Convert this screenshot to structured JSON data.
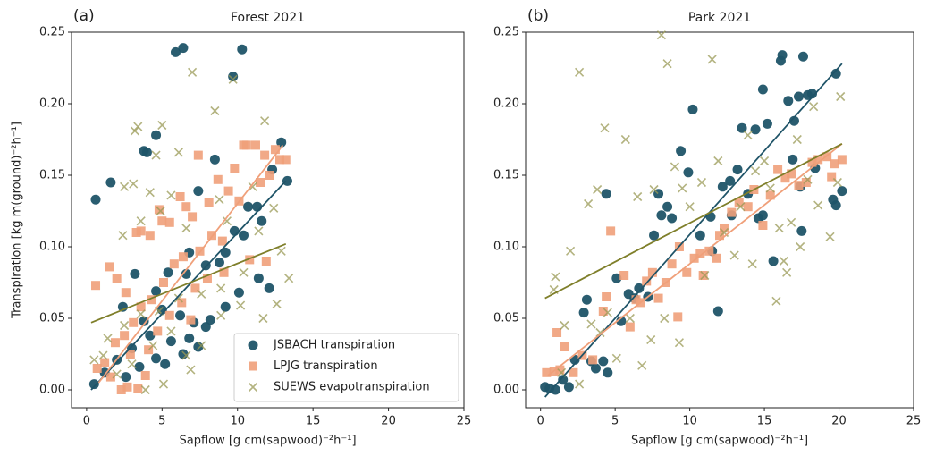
{
  "chart_data": [
    {
      "type": "scatter",
      "panel_label": "(a)",
      "title": "Forest 2021",
      "xlabel": "Sapflow [g cm(sapwood)⁻²h⁻¹]",
      "ylabel": "Transpiration [kg m(ground)⁻²h⁻¹]",
      "xlim": [
        -1,
        25
      ],
      "ylim": [
        -0.0125,
        0.25
      ],
      "xticks": [
        0,
        5,
        10,
        15,
        20,
        25
      ],
      "yticks": [
        {
          "value": 0,
          "label": "0.00"
        },
        {
          "value": 0.05,
          "label": "0.05"
        },
        {
          "value": 0.1,
          "label": "0.10"
        },
        {
          "value": 0.15,
          "label": "0.15"
        },
        {
          "value": 0.2,
          "label": "0.20"
        },
        {
          "value": 0.25,
          "label": "0.25"
        }
      ],
      "legend": "lower right",
      "series": [
        {
          "name": "JSBACH transpiration",
          "color": "#1f5468",
          "marker": "circle",
          "x": [
            0.6,
            1.6,
            4.6,
            3.8,
            4.0,
            5.9,
            6.4,
            10.3,
            9.7,
            7.4,
            8.5,
            12.9,
            13.3,
            12.3,
            11.3,
            10.7,
            11.6,
            9.8,
            10.4,
            8.8,
            9.2,
            7.9,
            6.6,
            6.8,
            5.4,
            4.6,
            3.2,
            2.4,
            3.8,
            5.0,
            6.2,
            7.1,
            8.2,
            9.2,
            10.1,
            11.4,
            12.1,
            4.2,
            5.6,
            6.8,
            7.9,
            3.0,
            2.0,
            1.2,
            0.5,
            4.6,
            5.2,
            6.4,
            3.5,
            2.6,
            7.4
          ],
          "values": [
            0.133,
            0.145,
            0.178,
            0.167,
            0.166,
            0.236,
            0.239,
            0.238,
            0.219,
            0.139,
            0.161,
            0.173,
            0.146,
            0.154,
            0.128,
            0.128,
            0.118,
            0.111,
            0.108,
            0.089,
            0.096,
            0.087,
            0.081,
            0.096,
            0.082,
            0.069,
            0.081,
            0.058,
            0.048,
            0.056,
            0.052,
            0.047,
            0.049,
            0.058,
            0.068,
            0.078,
            0.071,
            0.038,
            0.034,
            0.036,
            0.044,
            0.029,
            0.021,
            0.012,
            0.004,
            0.022,
            0.018,
            0.025,
            0.016,
            0.009,
            0.03
          ]
        },
        {
          "name": "LPJG transpiration",
          "color": "#f0a07a",
          "marker": "square",
          "x": [
            0.6,
            1.5,
            2.0,
            2.6,
            3.3,
            3.6,
            4.2,
            4.8,
            5.0,
            5.5,
            6.2,
            6.6,
            7.0,
            7.4,
            8.1,
            8.7,
            9.4,
            9.8,
            10.4,
            10.6,
            11.2,
            11.8,
            12.5,
            12.8,
            13.2,
            11.5,
            12.1,
            10.1,
            9.0,
            8.3,
            7.5,
            6.4,
            5.8,
            5.1,
            4.3,
            3.6,
            3.1,
            2.5,
            1.9,
            1.2,
            0.7,
            1.6,
            2.3,
            2.7,
            3.4,
            4.1,
            4.7,
            5.5,
            6.3,
            7.2,
            8.0,
            9.1,
            10.8,
            11.9,
            3.9,
            2.9,
            6.9
          ],
          "values": [
            0.073,
            0.086,
            0.078,
            0.068,
            0.11,
            0.111,
            0.108,
            0.126,
            0.118,
            0.117,
            0.135,
            0.128,
            0.121,
            0.164,
            0.131,
            0.147,
            0.139,
            0.155,
            0.171,
            0.171,
            0.171,
            0.164,
            0.168,
            0.161,
            0.161,
            0.145,
            0.15,
            0.132,
            0.104,
            0.108,
            0.097,
            0.093,
            0.088,
            0.075,
            0.063,
            0.058,
            0.047,
            0.038,
            0.033,
            0.019,
            0.015,
            0.009,
            0.0,
            0.002,
            0.001,
            0.028,
            0.041,
            0.052,
            0.061,
            0.071,
            0.078,
            0.082,
            0.091,
            0.09,
            0.01,
            0.025,
            0.049
          ]
        },
        {
          "name": "SUEWS evapotranspiration",
          "color": "#9a9a55",
          "marker": "x",
          "x": [
            3.4,
            3.2,
            5.0,
            7.0,
            9.7,
            8.5,
            11.8,
            6.1,
            4.6,
            2.5,
            3.1,
            4.2,
            5.6,
            8.8,
            11.0,
            12.4,
            2.4,
            3.6,
            4.9,
            6.6,
            9.3,
            11.4,
            12.9,
            13.4,
            10.4,
            8.9,
            7.6,
            6.1,
            4.8,
            3.6,
            2.5,
            1.4,
            0.5,
            1.1,
            2.0,
            3.0,
            4.4,
            5.6,
            6.6,
            7.6,
            8.9,
            10.2,
            11.7,
            12.6,
            6.9,
            5.1,
            3.9
          ],
          "values": [
            0.184,
            0.181,
            0.185,
            0.222,
            0.217,
            0.195,
            0.188,
            0.166,
            0.164,
            0.142,
            0.144,
            0.138,
            0.136,
            0.133,
            0.142,
            0.127,
            0.108,
            0.118,
            0.125,
            0.113,
            0.118,
            0.111,
            0.097,
            0.078,
            0.082,
            0.071,
            0.067,
            0.064,
            0.055,
            0.053,
            0.045,
            0.036,
            0.021,
            0.024,
            0.011,
            0.018,
            0.031,
            0.041,
            0.024,
            0.031,
            0.052,
            0.059,
            0.05,
            0.06,
            0.014,
            0.004,
            0.0
          ]
        }
      ],
      "trend_lines": [
        {
          "color": "#1f5468",
          "x": [
            0.3,
            13.2
          ],
          "values": [
            0.0,
            0.146
          ]
        },
        {
          "color": "#f0a07a",
          "x": [
            0.8,
            13.0
          ],
          "values": [
            0.005,
            0.171
          ]
        },
        {
          "color": "#7f7f2a",
          "x": [
            0.3,
            13.2
          ],
          "values": [
            0.047,
            0.102
          ]
        }
      ]
    },
    {
      "type": "scatter",
      "panel_label": "(b)",
      "title": "Park 2021",
      "xlabel": "Sapflow [g cm(sapwood)⁻²h⁻¹]",
      "xlim": [
        -1,
        25
      ],
      "ylim": [
        -0.0125,
        0.25
      ],
      "xticks": [
        0,
        5,
        10,
        15,
        20,
        25
      ],
      "yticks": [
        {
          "value": 0,
          "label": "0.00"
        },
        {
          "value": 0.05,
          "label": "0.05"
        },
        {
          "value": 0.1,
          "label": "0.10"
        },
        {
          "value": 0.15,
          "label": "0.15"
        },
        {
          "value": 0.2,
          "label": "0.20"
        },
        {
          "value": 0.25,
          "label": "0.25"
        }
      ],
      "series": [
        {
          "color": "#1f5468",
          "marker": "circle",
          "x": [
            0.3,
            0.6,
            1.0,
            1.5,
            1.9,
            2.3,
            3.4,
            3.7,
            4.2,
            4.5,
            2.9,
            3.1,
            4.4,
            5.1,
            5.4,
            5.9,
            6.3,
            6.6,
            7.2,
            7.6,
            7.9,
            8.1,
            8.5,
            8.8,
            9.4,
            10.2,
            9.9,
            10.7,
            11.4,
            11.9,
            11.5,
            12.2,
            12.7,
            13.2,
            13.5,
            13.9,
            14.4,
            14.9,
            15.2,
            15.6,
            14.9,
            16.1,
            16.2,
            16.6,
            17.0,
            17.6,
            17.3,
            17.9,
            18.2,
            16.9,
            17.4,
            17.5,
            18.4,
            19.6,
            19.8,
            20.2,
            19.8,
            14.6,
            12.8
          ],
          "values": [
            0.002,
            0.001,
            0.0,
            0.007,
            0.002,
            0.021,
            0.02,
            0.015,
            0.02,
            0.012,
            0.054,
            0.063,
            0.137,
            0.078,
            0.048,
            0.067,
            0.064,
            0.071,
            0.065,
            0.108,
            0.137,
            0.122,
            0.128,
            0.12,
            0.167,
            0.196,
            0.152,
            0.108,
            0.121,
            0.055,
            0.097,
            0.142,
            0.146,
            0.154,
            0.183,
            0.137,
            0.182,
            0.21,
            0.186,
            0.09,
            0.122,
            0.23,
            0.234,
            0.202,
            0.188,
            0.233,
            0.205,
            0.206,
            0.207,
            0.161,
            0.142,
            0.111,
            0.155,
            0.133,
            0.129,
            0.139,
            0.221,
            0.12,
            0.122
          ]
        },
        {
          "color": "#f0a07a",
          "marker": "square",
          "x": [
            0.4,
            0.9,
            1.3,
            1.1,
            1.6,
            2.2,
            2.8,
            3.5,
            4.2,
            4.4,
            4.7,
            5.6,
            6.0,
            6.4,
            6.7,
            7.1,
            7.5,
            7.9,
            8.4,
            8.8,
            9.3,
            9.8,
            10.3,
            10.7,
            11.3,
            11.8,
            12.3,
            12.8,
            13.3,
            13.9,
            14.3,
            14.9,
            15.4,
            15.9,
            16.4,
            16.8,
            17.3,
            17.8,
            18.2,
            18.6,
            19.2,
            19.7,
            20.2,
            19.5,
            10.9,
            9.2,
            12.0
          ],
          "values": [
            0.012,
            0.013,
            0.014,
            0.04,
            0.03,
            0.012,
            0.024,
            0.021,
            0.055,
            0.065,
            0.111,
            0.08,
            0.044,
            0.063,
            0.061,
            0.076,
            0.082,
            0.064,
            0.075,
            0.088,
            0.1,
            0.082,
            0.092,
            0.095,
            0.097,
            0.092,
            0.113,
            0.124,
            0.131,
            0.128,
            0.14,
            0.115,
            0.136,
            0.154,
            0.148,
            0.151,
            0.143,
            0.145,
            0.159,
            0.161,
            0.163,
            0.158,
            0.161,
            0.149,
            0.08,
            0.051,
            0.108
          ]
        },
        {
          "color": "#9a9a55",
          "marker": "x",
          "x": [
            1.0,
            0.9,
            1.6,
            2.6,
            3.2,
            3.8,
            4.3,
            5.7,
            6.5,
            7.6,
            8.1,
            8.5,
            9.0,
            9.5,
            10.0,
            10.8,
            11.5,
            11.9,
            12.3,
            13.4,
            13.9,
            14.4,
            15.0,
            15.4,
            16.0,
            16.3,
            16.8,
            17.4,
            17.9,
            18.6,
            19.4,
            20.1,
            19.9,
            18.3,
            17.2,
            14.2,
            13.0,
            11.0,
            9.3,
            7.4,
            6.8,
            5.1,
            4.0,
            2.6,
            3.4,
            4.5,
            6.0,
            8.3,
            15.8,
            16.5,
            2.0,
            1.4
          ],
          "values": [
            0.079,
            0.07,
            0.045,
            0.222,
            0.13,
            0.14,
            0.183,
            0.175,
            0.135,
            0.14,
            0.248,
            0.228,
            0.156,
            0.141,
            0.128,
            0.145,
            0.231,
            0.16,
            0.11,
            0.128,
            0.178,
            0.153,
            0.16,
            0.141,
            0.113,
            0.09,
            0.117,
            0.1,
            0.147,
            0.129,
            0.107,
            0.205,
            0.145,
            0.198,
            0.175,
            0.088,
            0.094,
            0.08,
            0.033,
            0.035,
            0.017,
            0.022,
            0.04,
            0.004,
            0.046,
            0.054,
            0.05,
            0.05,
            0.062,
            0.082,
            0.097,
            0.012
          ]
        }
      ],
      "trend_lines": [
        {
          "color": "#1f5468",
          "x": [
            0.3,
            20.2
          ],
          "values": [
            -0.005,
            0.228
          ]
        },
        {
          "color": "#f0a07a",
          "x": [
            0.5,
            20.2
          ],
          "values": [
            0.01,
            0.172
          ]
        },
        {
          "color": "#7f7f2a",
          "x": [
            0.3,
            20.2
          ],
          "values": [
            0.064,
            0.172
          ]
        }
      ]
    }
  ]
}
